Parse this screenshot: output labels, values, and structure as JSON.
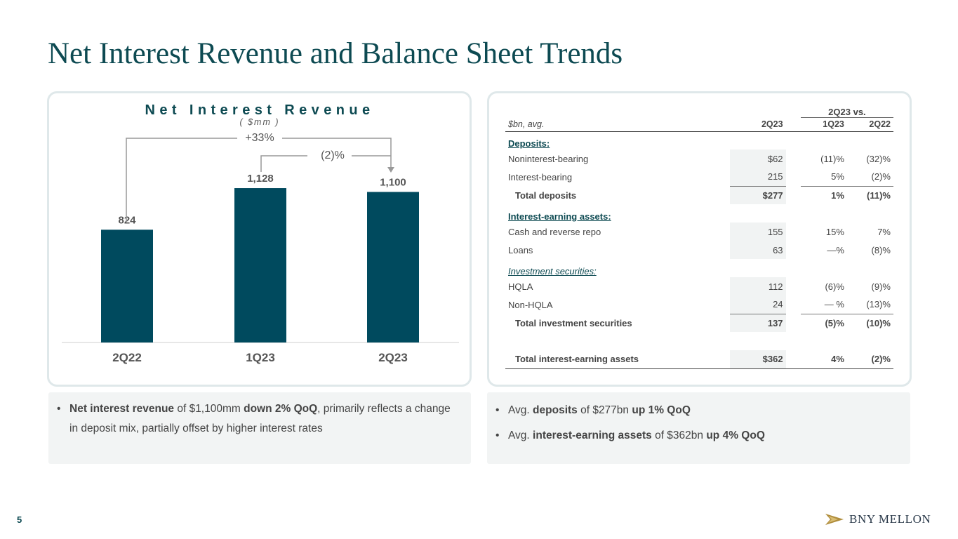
{
  "title": "Net Interest Revenue and Balance Sheet Trends",
  "page_number": "5",
  "logo_text": "BNY MELLON",
  "chart_data": {
    "type": "bar",
    "title": "Net Interest Revenue",
    "subtitle": "( $mm )",
    "categories": [
      "2Q22",
      "1Q23",
      "2Q23"
    ],
    "values": [
      824,
      1128,
      1100
    ],
    "value_labels": [
      "824",
      "1,128",
      "1,100"
    ],
    "ylim": [
      0,
      1200
    ],
    "color": "#004a5e",
    "annotations": [
      {
        "label": "+33%",
        "from": "2Q22",
        "to": "2Q23"
      },
      {
        "label": "(2)%",
        "from": "1Q23",
        "to": "2Q23"
      }
    ]
  },
  "table": {
    "vs_header": "2Q23 vs.",
    "columns": [
      "$bn, avg.",
      "2Q23",
      "1Q23",
      "2Q22"
    ],
    "sections": [
      {
        "heading": "Deposits:",
        "style": "bold",
        "rows": [
          {
            "label": "Noninterest-bearing",
            "v": [
              "$62",
              "(11)%",
              "(32)%"
            ]
          },
          {
            "label": "Interest-bearing",
            "v": [
              "215",
              "5%",
              "(2)%"
            ]
          }
        ],
        "total": {
          "label": "Total deposits",
          "v": [
            "$277",
            "1%",
            "(11)%"
          ]
        }
      },
      {
        "heading": "Interest-earning assets:",
        "style": "bold",
        "rows": [
          {
            "label": "Cash and reverse repo",
            "v": [
              "155",
              "15%",
              "7%"
            ]
          },
          {
            "label": "Loans",
            "v": [
              "63",
              "—%",
              "(8)%"
            ]
          }
        ]
      },
      {
        "heading": "Investment securities:",
        "style": "italic",
        "rows": [
          {
            "label": "HQLA",
            "v": [
              "112",
              "(6)%",
              "(9)%"
            ]
          },
          {
            "label": "Non-HQLA",
            "v": [
              "24",
              "— %",
              "(13)%"
            ]
          }
        ],
        "total": {
          "label": "Total investment securities",
          "v": [
            "137",
            "(5)%",
            "(10)%"
          ]
        }
      }
    ],
    "grand_total": {
      "label": "Total interest-earning assets",
      "v": [
        "$362",
        "4%",
        "(2)%"
      ]
    }
  },
  "notes_left": {
    "b1_bold1": "Net interest revenue",
    "b1_text1": " of $1,100mm ",
    "b1_bold2": "down 2% QoQ",
    "b1_text2": ", primarily reflects a change in deposit mix, partially offset by higher interest rates"
  },
  "notes_right": {
    "b1_text1": "Avg. ",
    "b1_bold1": "deposits",
    "b1_text2": " of $277bn ",
    "b1_bold2": "up 1% QoQ",
    "b2_text1": "Avg. ",
    "b2_bold1": "interest-earning assets",
    "b2_text2": " of $362bn ",
    "b2_bold2": "up 4% QoQ"
  }
}
